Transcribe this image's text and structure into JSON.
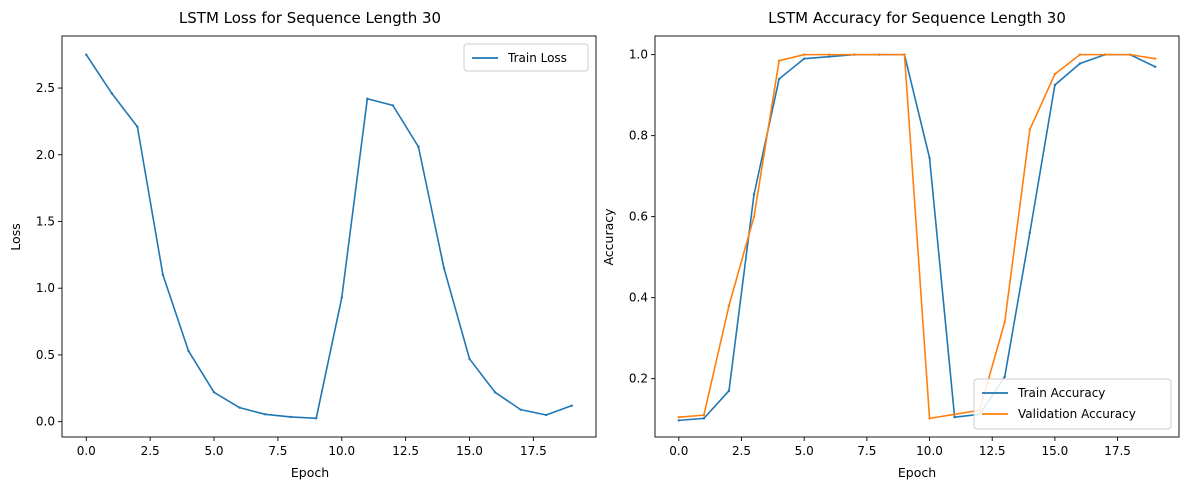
{
  "chart_data": [
    {
      "type": "line",
      "title": "LSTM Loss for Sequence Length 30",
      "xlabel": "Epoch",
      "ylabel": "Loss",
      "xlim": [
        -0.95,
        19.95
      ],
      "ylim": [
        -0.115,
        2.89
      ],
      "xticks": [
        0,
        2.5,
        5,
        7.5,
        10,
        12.5,
        15,
        17.5
      ],
      "xtick_labels": [
        "0.0",
        "2.5",
        "5.0",
        "7.5",
        "10.0",
        "12.5",
        "15.0",
        "17.5"
      ],
      "yticks": [
        0,
        0.5,
        1,
        1.5,
        2,
        2.5
      ],
      "ytick_labels": [
        "0.0",
        "0.5",
        "1.0",
        "1.5",
        "2.0",
        "2.5"
      ],
      "grid": false,
      "legend": "upper right",
      "x": [
        0,
        1,
        2,
        3,
        4,
        5,
        6,
        7,
        8,
        9,
        10,
        11,
        12,
        13,
        14,
        15,
        16,
        17,
        18,
        19
      ],
      "series": [
        {
          "name": "Train Loss",
          "color": "#1f77b4",
          "values": [
            2.75,
            2.46,
            2.21,
            1.1,
            0.53,
            0.22,
            0.105,
            0.055,
            0.035,
            0.025,
            0.93,
            2.42,
            2.37,
            2.06,
            1.15,
            0.47,
            0.22,
            0.09,
            0.05,
            0.12
          ]
        }
      ]
    },
    {
      "type": "line",
      "title": "LSTM Accuracy for Sequence Length 30",
      "xlabel": "Epoch",
      "ylabel": "Accuracy",
      "xlim": [
        -0.95,
        19.95
      ],
      "ylim": [
        0.056,
        1.046
      ],
      "xticks": [
        0,
        2.5,
        5,
        7.5,
        10,
        12.5,
        15,
        17.5
      ],
      "xtick_labels": [
        "0.0",
        "2.5",
        "5.0",
        "7.5",
        "10.0",
        "12.5",
        "15.0",
        "17.5"
      ],
      "yticks": [
        0.2,
        0.4,
        0.6,
        0.8,
        1.0
      ],
      "ytick_labels": [
        "0.2",
        "0.4",
        "0.6",
        "0.8",
        "1.0"
      ],
      "grid": false,
      "legend": "lower right",
      "x": [
        0,
        1,
        2,
        3,
        4,
        5,
        6,
        7,
        8,
        9,
        10,
        11,
        12,
        13,
        14,
        15,
        16,
        17,
        18,
        19
      ],
      "series": [
        {
          "name": "Train Accuracy",
          "color": "#1f77b4",
          "values": [
            0.097,
            0.102,
            0.17,
            0.655,
            0.94,
            0.99,
            0.995,
            1.0,
            1.0,
            1.0,
            0.745,
            0.105,
            0.112,
            0.205,
            0.56,
            0.925,
            0.978,
            1.0,
            1.0,
            0.97
          ]
        },
        {
          "name": "Validation Accuracy",
          "color": "#ff7f0e",
          "values": [
            0.105,
            0.11,
            0.38,
            0.6,
            0.985,
            1.0,
            1.0,
            1.0,
            1.0,
            1.0,
            0.102,
            0.112,
            0.122,
            0.34,
            0.815,
            0.952,
            1.0,
            1.0,
            1.0,
            0.99
          ]
        }
      ]
    }
  ]
}
